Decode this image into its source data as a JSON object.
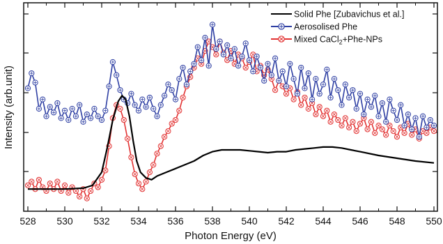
{
  "chart_data": {
    "type": "line",
    "xlabel": "Photon Energy (eV)",
    "ylabel": "Intensity (arb.unit)",
    "xlim": [
      528,
      550
    ],
    "ylim": [
      0,
      1
    ],
    "x_ticks": [
      528,
      530,
      532,
      534,
      536,
      538,
      540,
      542,
      544,
      546,
      548,
      550
    ],
    "x_tick_labels": [
      "528",
      "530",
      "532",
      "534",
      "536",
      "538",
      "540",
      "542",
      "544",
      "546",
      "548",
      "550"
    ],
    "y_tick_labels_shown": false,
    "grid": false,
    "legend": {
      "placement": "top-right"
    },
    "series": [
      {
        "name": "Solid Phe [Zubavichus et al.]",
        "color": "#000000",
        "marker": "none",
        "x": [
          528,
          529,
          530,
          531,
          531.5,
          532,
          532.3,
          532.6,
          532.9,
          533.1,
          533.3,
          533.5,
          533.7,
          533.9,
          534.1,
          534.4,
          534.7,
          535,
          535.5,
          536,
          536.5,
          537,
          537.5,
          538,
          538.5,
          539,
          539.5,
          540,
          540.5,
          541,
          541.5,
          542,
          542.5,
          543,
          543.5,
          544,
          544.5,
          545,
          545.5,
          546,
          547,
          548,
          549,
          550
        ],
        "y": [
          0.07,
          0.07,
          0.07,
          0.075,
          0.09,
          0.16,
          0.29,
          0.44,
          0.54,
          0.57,
          0.55,
          0.46,
          0.33,
          0.22,
          0.16,
          0.13,
          0.12,
          0.14,
          0.16,
          0.18,
          0.2,
          0.22,
          0.25,
          0.27,
          0.28,
          0.28,
          0.28,
          0.275,
          0.27,
          0.265,
          0.27,
          0.27,
          0.28,
          0.285,
          0.29,
          0.295,
          0.295,
          0.29,
          0.28,
          0.27,
          0.25,
          0.235,
          0.22,
          0.21
        ]
      },
      {
        "name": "Aerosolised Phe",
        "color": "#2e3fa3",
        "marker": "circle-plus",
        "x": [
          528,
          528.2,
          528.4,
          528.6,
          528.8,
          529,
          529.2,
          529.4,
          529.6,
          529.8,
          530,
          530.2,
          530.4,
          530.6,
          530.8,
          531,
          531.2,
          531.4,
          531.6,
          531.8,
          532,
          532.2,
          532.4,
          532.6,
          532.8,
          533,
          533.2,
          533.4,
          533.6,
          533.8,
          534,
          534.2,
          534.4,
          534.6,
          534.8,
          535,
          535.2,
          535.4,
          535.6,
          535.8,
          536,
          536.2,
          536.4,
          536.6,
          536.8,
          537,
          537.2,
          537.4,
          537.6,
          537.8,
          538,
          538.2,
          538.4,
          538.6,
          538.8,
          539,
          539.2,
          539.4,
          539.6,
          539.8,
          540,
          540.2,
          540.4,
          540.6,
          540.8,
          541,
          541.2,
          541.4,
          541.6,
          541.8,
          542,
          542.2,
          542.4,
          542.6,
          542.8,
          543,
          543.2,
          543.4,
          543.6,
          543.8,
          544,
          544.2,
          544.4,
          544.6,
          544.8,
          545,
          545.2,
          545.4,
          545.6,
          545.8,
          546,
          546.2,
          546.4,
          546.6,
          546.8,
          547,
          547.2,
          547.4,
          547.6,
          547.8,
          548,
          548.2,
          548.4,
          548.6,
          548.8,
          549,
          549.2,
          549.4,
          549.6,
          549.8,
          550
        ],
        "y": [
          0.61,
          0.69,
          0.64,
          0.5,
          0.55,
          0.46,
          0.51,
          0.48,
          0.53,
          0.45,
          0.49,
          0.44,
          0.5,
          0.46,
          0.52,
          0.43,
          0.47,
          0.45,
          0.5,
          0.46,
          0.44,
          0.49,
          0.62,
          0.75,
          0.68,
          0.6,
          0.55,
          0.53,
          0.58,
          0.52,
          0.49,
          0.55,
          0.51,
          0.56,
          0.5,
          0.46,
          0.52,
          0.57,
          0.63,
          0.6,
          0.55,
          0.66,
          0.72,
          0.63,
          0.7,
          0.74,
          0.83,
          0.76,
          0.88,
          0.73,
          0.95,
          0.82,
          0.86,
          0.79,
          0.84,
          0.77,
          0.82,
          0.73,
          0.78,
          0.85,
          0.76,
          0.7,
          0.78,
          0.72,
          0.65,
          0.74,
          0.68,
          0.77,
          0.65,
          0.7,
          0.62,
          0.74,
          0.66,
          0.58,
          0.72,
          0.61,
          0.69,
          0.55,
          0.66,
          0.58,
          0.63,
          0.71,
          0.56,
          0.66,
          0.6,
          0.52,
          0.63,
          0.56,
          0.6,
          0.5,
          0.58,
          0.47,
          0.55,
          0.51,
          0.57,
          0.46,
          0.53,
          0.43,
          0.55,
          0.49,
          0.44,
          0.52,
          0.41,
          0.47,
          0.39,
          0.45,
          0.35,
          0.46,
          0.4,
          0.44,
          0.41
        ]
      },
      {
        "name": "Mixed CaCl",
        "name_subscript": "2",
        "name_suffix": "+Phe-NPs",
        "color": "#e23232",
        "marker": "circle-x",
        "x": [
          528,
          528.2,
          528.4,
          528.6,
          528.8,
          529,
          529.2,
          529.4,
          529.6,
          529.8,
          530,
          530.2,
          530.4,
          530.6,
          530.8,
          531,
          531.2,
          531.4,
          531.6,
          531.8,
          532,
          532.2,
          532.4,
          532.6,
          532.8,
          533,
          533.2,
          533.4,
          533.6,
          533.8,
          534,
          534.2,
          534.4,
          534.6,
          534.8,
          535,
          535.2,
          535.4,
          535.6,
          535.8,
          536,
          536.2,
          536.4,
          536.6,
          536.8,
          537,
          537.2,
          537.4,
          537.6,
          537.8,
          538,
          538.2,
          538.4,
          538.6,
          538.8,
          539,
          539.2,
          539.4,
          539.6,
          539.8,
          540,
          540.2,
          540.4,
          540.6,
          540.8,
          541,
          541.2,
          541.4,
          541.6,
          541.8,
          542,
          542.2,
          542.4,
          542.6,
          542.8,
          543,
          543.2,
          543.4,
          543.6,
          543.8,
          544,
          544.2,
          544.4,
          544.6,
          544.8,
          545,
          545.2,
          545.4,
          545.6,
          545.8,
          546,
          546.2,
          546.4,
          546.6,
          546.8,
          547,
          547.2,
          547.4,
          547.6,
          547.8,
          548,
          548.2,
          548.4,
          548.6,
          548.8,
          549,
          549.2,
          549.4,
          549.6,
          549.8,
          550
        ],
        "y": [
          0.09,
          0.11,
          0.07,
          0.12,
          0.08,
          0.06,
          0.1,
          0.07,
          0.11,
          0.06,
          0.09,
          0.05,
          0.08,
          0.06,
          0.03,
          0.07,
          0.02,
          0.06,
          0.1,
          0.08,
          0.12,
          0.17,
          0.3,
          0.45,
          0.52,
          0.5,
          0.44,
          0.34,
          0.24,
          0.15,
          0.1,
          0.07,
          0.11,
          0.16,
          0.2,
          0.26,
          0.3,
          0.35,
          0.38,
          0.42,
          0.44,
          0.49,
          0.56,
          0.62,
          0.67,
          0.72,
          0.77,
          0.74,
          0.81,
          0.86,
          0.83,
          0.79,
          0.86,
          0.8,
          0.76,
          0.81,
          0.74,
          0.79,
          0.77,
          0.72,
          0.75,
          0.79,
          0.7,
          0.73,
          0.68,
          0.71,
          0.66,
          0.6,
          0.65,
          0.62,
          0.58,
          0.61,
          0.55,
          0.59,
          0.52,
          0.56,
          0.5,
          0.53,
          0.47,
          0.51,
          0.46,
          0.49,
          0.43,
          0.47,
          0.44,
          0.41,
          0.45,
          0.4,
          0.43,
          0.38,
          0.42,
          0.45,
          0.39,
          0.43,
          0.37,
          0.41,
          0.39,
          0.36,
          0.41,
          0.38,
          0.35,
          0.4,
          0.37,
          0.42,
          0.36,
          0.39,
          0.34,
          0.38,
          0.37,
          0.4,
          0.38
        ]
      }
    ]
  }
}
